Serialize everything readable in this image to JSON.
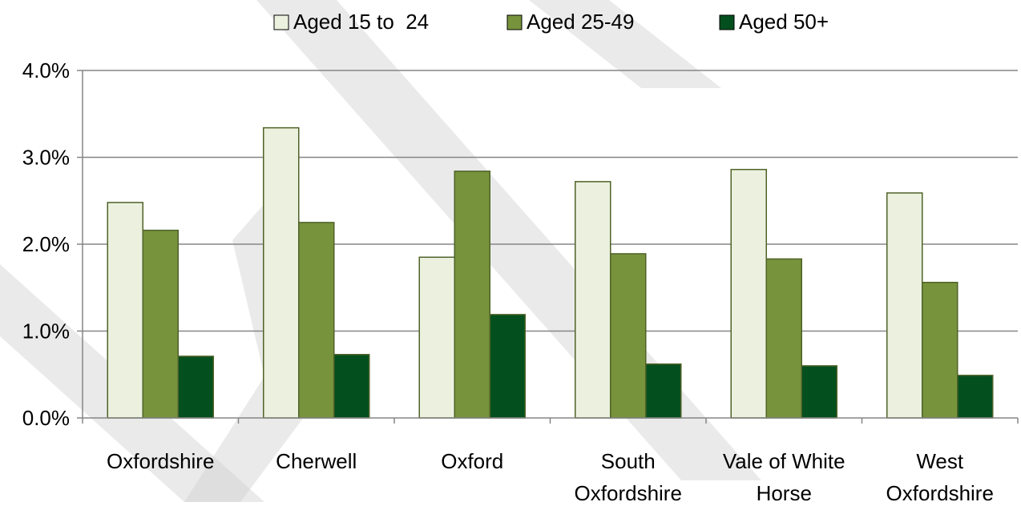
{
  "chart_data": {
    "type": "bar",
    "title": "",
    "xlabel": "",
    "ylabel": "",
    "categories": [
      [
        "Oxfordshire"
      ],
      [
        "Cherwell"
      ],
      [
        "Oxford"
      ],
      [
        "South",
        "Oxfordshire"
      ],
      [
        "Vale of White",
        "Horse"
      ],
      [
        "West",
        "Oxfordshire"
      ]
    ],
    "series": [
      {
        "name": "Aged 15 to  24",
        "color": "#ebf1de",
        "values": [
          2.48,
          3.34,
          1.85,
          2.72,
          2.86,
          2.59
        ]
      },
      {
        "name": "Aged 25-49",
        "color": "#77933c",
        "values": [
          2.16,
          2.25,
          2.84,
          1.89,
          1.83,
          1.56
        ]
      },
      {
        "name": "Aged 50+",
        "color": "#03501e",
        "values": [
          0.71,
          0.73,
          1.19,
          0.62,
          0.6,
          0.49
        ]
      }
    ],
    "ylim": [
      0,
      4.0
    ],
    "yticks": [
      "0.0%",
      "1.0%",
      "2.0%",
      "3.0%",
      "4.0%"
    ],
    "value_unit": "%",
    "grid": true,
    "legend_position": "top-center",
    "bar_outline_color": "#4f6228",
    "gridline_color": "#868686"
  }
}
